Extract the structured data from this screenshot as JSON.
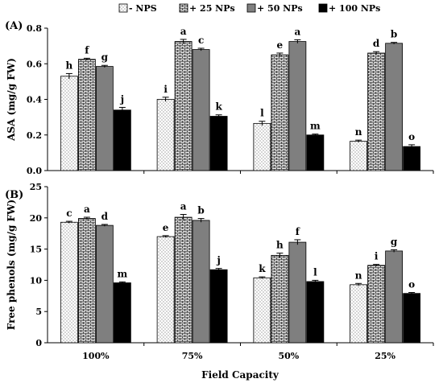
{
  "legend": [
    {
      "label": "- NPS",
      "fill": "dots"
    },
    {
      "label": "+ 25 NPs",
      "fill": "brick"
    },
    {
      "label": "+ 50 NPs",
      "fill": "#7f7f7f"
    },
    {
      "label": "+ 100 NPs",
      "fill": "#000000"
    }
  ],
  "colors": {
    "bar_edge": "#000000",
    "nps50": "#7f7f7f",
    "nps100": "#000000"
  },
  "chart_data": [
    {
      "type": "bar",
      "panel_label": "(A)",
      "ylabel": "ASA  (mg/g FW)",
      "xlabel": "",
      "categories": [
        "100%",
        "75%",
        "50%",
        "25%"
      ],
      "ylim": [
        0,
        0.8
      ],
      "yticks": [
        0,
        0.2,
        0.4,
        0.6,
        0.8
      ],
      "ytick_labels": [
        "0.0",
        "0.2",
        "0.4",
        "0.6",
        "0.8"
      ],
      "series": [
        {
          "name": "- NPS",
          "values": [
            0.53,
            0.4,
            0.265,
            0.165
          ],
          "errors": [
            0.015,
            0.012,
            0.012,
            0.006
          ],
          "letters": [
            "h",
            "i",
            "l",
            "n"
          ]
        },
        {
          "name": "+ 25 NPs",
          "values": [
            0.625,
            0.725,
            0.65,
            0.66
          ],
          "errors": [
            0.006,
            0.012,
            0.01,
            0.008
          ],
          "letters": [
            "f",
            "a",
            "e",
            "d"
          ]
        },
        {
          "name": "+ 50 NPs",
          "values": [
            0.585,
            0.68,
            0.725,
            0.715
          ],
          "errors": [
            0.006,
            0.007,
            0.01,
            0.005
          ],
          "letters": [
            "g",
            "c",
            "a",
            "b"
          ]
        },
        {
          "name": "+ 100 NPs",
          "values": [
            0.34,
            0.305,
            0.2,
            0.135
          ],
          "errors": [
            0.015,
            0.008,
            0.005,
            0.01
          ],
          "letters": [
            "j",
            "k",
            "m",
            "o"
          ]
        }
      ]
    },
    {
      "type": "bar",
      "panel_label": "(B)",
      "ylabel": "Free phenols  (mg/g FW)",
      "xlabel": "Field Capacity",
      "categories": [
        "100%",
        "75%",
        "50%",
        "25%"
      ],
      "ylim": [
        0,
        25
      ],
      "yticks": [
        0,
        5,
        10,
        15,
        20,
        25
      ],
      "ytick_labels": [
        "0",
        "5",
        "10",
        "15",
        "20",
        "25"
      ],
      "series": [
        {
          "name": "- NPS",
          "values": [
            19.3,
            17.0,
            10.4,
            9.3
          ],
          "errors": [
            0.15,
            0.15,
            0.15,
            0.2
          ],
          "letters": [
            "c",
            "e",
            "k",
            "n"
          ]
        },
        {
          "name": "+ 25 NPs",
          "values": [
            19.9,
            20.1,
            14.0,
            12.4
          ],
          "errors": [
            0.2,
            0.45,
            0.35,
            0.15
          ],
          "letters": [
            "a",
            "a",
            "h",
            "i"
          ]
        },
        {
          "name": "+ 50 NPs",
          "values": [
            18.8,
            19.6,
            16.1,
            14.7
          ],
          "errors": [
            0.15,
            0.3,
            0.4,
            0.2
          ],
          "letters": [
            "d",
            "b",
            "f",
            "g"
          ]
        },
        {
          "name": "+ 100 NPs",
          "values": [
            9.6,
            11.7,
            9.8,
            7.9
          ],
          "errors": [
            0.15,
            0.2,
            0.2,
            0.15
          ],
          "letters": [
            "m",
            "j",
            "l",
            "o"
          ]
        }
      ]
    }
  ]
}
